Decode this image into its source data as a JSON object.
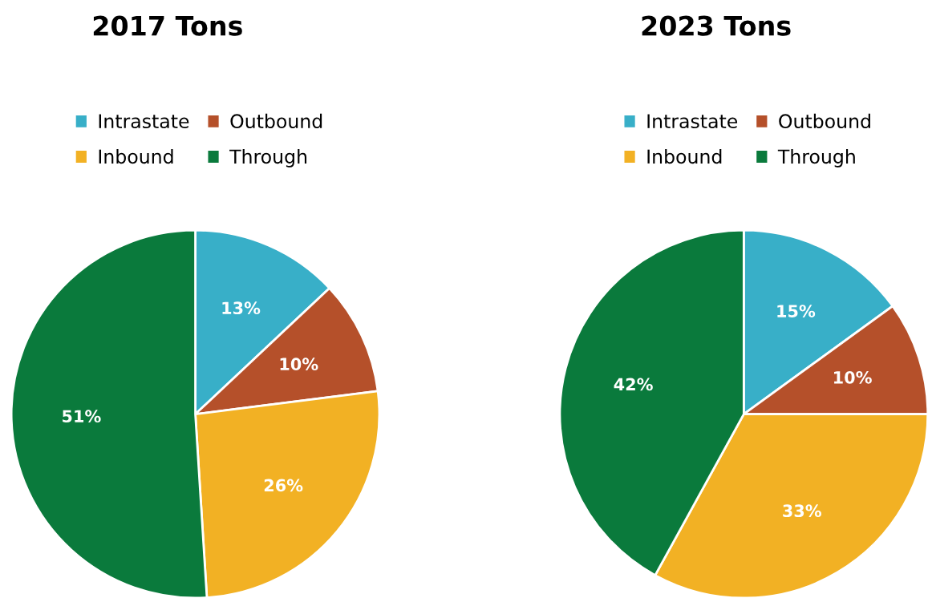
{
  "chart_data": [
    {
      "type": "pie",
      "title": "2017 Tons",
      "categories": [
        "Intrastate",
        "Outbound",
        "Inbound",
        "Through"
      ],
      "values": [
        13,
        10,
        26,
        51
      ],
      "colors": [
        "#38afc8",
        "#b5502a",
        "#f2b124",
        "#0a7a3c"
      ],
      "value_labels": [
        "13%",
        "10%",
        "26%",
        "51%"
      ],
      "legend": "top"
    },
    {
      "type": "pie",
      "title": "2023 Tons",
      "categories": [
        "Intrastate",
        "Outbound",
        "Inbound",
        "Through"
      ],
      "values": [
        15,
        10,
        33,
        42
      ],
      "colors": [
        "#38afc8",
        "#b5502a",
        "#f2b124",
        "#0a7a3c"
      ],
      "value_labels": [
        "15%",
        "10%",
        "33%",
        "42%"
      ],
      "legend": "top"
    }
  ]
}
